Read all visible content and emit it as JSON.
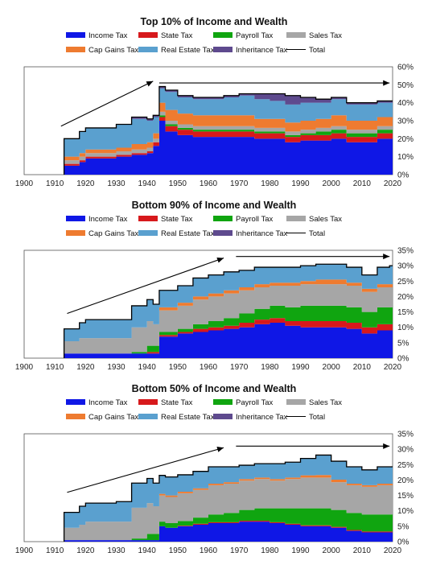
{
  "chart_data": [
    {
      "type": "area",
      "title": "Top 10% of Income and Wealth",
      "x_ticks": [
        1900,
        1910,
        1920,
        1930,
        1940,
        1950,
        1960,
        1970,
        1980,
        1990,
        2000,
        2010,
        2020
      ],
      "y_ticks": [
        "0%",
        "10%",
        "20%",
        "30%",
        "40%",
        "50%",
        "60%"
      ],
      "ylim": [
        0,
        60
      ],
      "xlim": [
        1900,
        2020
      ],
      "stacked": true,
      "legend_position": "top",
      "x": [
        1913,
        1918,
        1920,
        1925,
        1930,
        1935,
        1940,
        1942,
        1944,
        1946,
        1950,
        1955,
        1960,
        1965,
        1970,
        1975,
        1980,
        1985,
        1990,
        1995,
        2000,
        2005,
        2010,
        2015,
        2019
      ],
      "series": [
        {
          "name": "Income Tax",
          "color": "#0f17e6",
          "values": [
            5,
            7,
            9,
            9,
            10,
            11,
            12,
            16,
            30,
            24,
            22,
            21,
            21,
            21,
            21,
            20,
            20,
            18,
            19,
            19,
            20,
            18,
            18,
            20,
            20
          ]
        },
        {
          "name": "State Tax",
          "color": "#d7191c",
          "values": [
            1,
            1,
            1,
            1,
            1,
            1,
            1,
            2,
            2,
            3,
            3,
            3,
            3,
            3,
            3,
            3,
            3,
            3,
            3,
            3,
            3,
            3,
            3,
            3,
            3
          ]
        },
        {
          "name": "Payroll Tax",
          "color": "#10a510",
          "values": [
            0,
            0,
            0,
            0,
            0,
            0,
            0,
            0,
            1,
            1,
            1,
            1,
            1,
            1,
            1,
            1,
            1,
            1,
            1,
            2,
            2,
            2,
            2,
            2,
            2
          ]
        },
        {
          "name": "Sales Tax",
          "color": "#a6a6a6",
          "values": [
            2,
            2,
            2,
            2,
            2,
            2,
            2,
            2,
            2,
            2,
            2,
            2,
            2,
            2,
            2,
            2,
            2,
            2,
            2,
            2,
            2,
            2,
            2,
            2,
            2
          ]
        },
        {
          "name": "Cap Gains Tax",
          "color": "#ee7b30",
          "values": [
            2,
            2,
            2,
            2,
            2,
            3,
            3,
            3,
            5,
            6,
            6,
            6,
            6,
            6,
            6,
            5,
            5,
            5,
            5,
            5,
            6,
            5,
            5,
            5,
            5
          ]
        },
        {
          "name": "Real Estate Tax",
          "color": "#5aa0cf",
          "values": [
            10,
            12,
            12,
            12,
            13,
            14,
            12,
            9,
            8,
            10,
            9,
            9,
            9,
            10,
            11,
            11,
            10,
            10,
            10,
            9,
            9,
            9,
            9,
            8,
            8
          ]
        },
        {
          "name": "Inheritance Tax",
          "color": "#5e4a8e",
          "values": [
            0,
            0,
            0,
            0,
            0,
            1,
            1,
            1,
            1,
            1,
            1,
            1,
            1,
            1,
            1,
            3,
            4,
            5,
            3,
            2,
            1,
            1,
            1,
            1,
            1
          ]
        }
      ],
      "total_label": "Total",
      "arrows": [
        {
          "from": [
            1912,
            27
          ],
          "to": [
            1942,
            52
          ]
        },
        {
          "from": [
            1944,
            51
          ],
          "to": [
            2019,
            51
          ]
        }
      ]
    },
    {
      "type": "area",
      "title": "Bottom 90% of Income and Wealth",
      "x_ticks": [
        1900,
        1910,
        1920,
        1930,
        1940,
        1950,
        1960,
        1970,
        1980,
        1990,
        2000,
        2010,
        2020
      ],
      "y_ticks": [
        "0%",
        "5%",
        "10%",
        "15%",
        "20%",
        "25%",
        "30%",
        "35%"
      ],
      "ylim": [
        0,
        35
      ],
      "xlim": [
        1900,
        2020
      ],
      "stacked": true,
      "legend_position": "top",
      "x": [
        1913,
        1918,
        1920,
        1925,
        1930,
        1935,
        1940,
        1942,
        1944,
        1946,
        1950,
        1955,
        1960,
        1965,
        1970,
        1975,
        1980,
        1985,
        1990,
        1995,
        2000,
        2005,
        2010,
        2015,
        2019
      ],
      "series": [
        {
          "name": "Income Tax",
          "color": "#0f17e6",
          "values": [
            1.5,
            1.5,
            1.5,
            1.5,
            1.5,
            1.5,
            1.5,
            1.5,
            7,
            7,
            8,
            8.5,
            9,
            9.5,
            10,
            11,
            11.5,
            10.5,
            10,
            10,
            10,
            9.5,
            8,
            9,
            9
          ]
        },
        {
          "name": "State Tax",
          "color": "#d7191c",
          "values": [
            0,
            0,
            0,
            0,
            0,
            0,
            0.5,
            0.5,
            0.5,
            0.5,
            0.5,
            1,
            1,
            1,
            1.5,
            1.5,
            1.5,
            1.5,
            2,
            2,
            2,
            2,
            2,
            2,
            2
          ]
        },
        {
          "name": "Payroll Tax",
          "color": "#10a510",
          "values": [
            0,
            0,
            0,
            0,
            0,
            0.5,
            2,
            2,
            1,
            1,
            1,
            1.5,
            2,
            2.5,
            3,
            3.5,
            4,
            4.5,
            5,
            5,
            5,
            5,
            5,
            5.5,
            5.5
          ]
        },
        {
          "name": "Sales Tax",
          "color": "#a6a6a6",
          "values": [
            4,
            5,
            5,
            5,
            5,
            8,
            8,
            7,
            7,
            7,
            7.5,
            8,
            8,
            8,
            7.5,
            7,
            6.5,
            7,
            7,
            7,
            7,
            7,
            6.5,
            6.5,
            6.5
          ]
        },
        {
          "name": "Cap Gains Tax",
          "color": "#ee7b30",
          "values": [
            0,
            0,
            0,
            0,
            0,
            0,
            0,
            0,
            1,
            1,
            1,
            1,
            1,
            1,
            1,
            1,
            1,
            1,
            1,
            1.5,
            1.5,
            1,
            1,
            1,
            1
          ]
        },
        {
          "name": "Real Estate Tax",
          "color": "#5aa0cf",
          "values": [
            4,
            5,
            6,
            6,
            6,
            7,
            7,
            6.5,
            5.5,
            5.5,
            5.5,
            6,
            6,
            6,
            5.5,
            5.5,
            5,
            5,
            5,
            5,
            5,
            5,
            4.5,
            5.5,
            6
          ]
        },
        {
          "name": "Inheritance Tax",
          "color": "#5e4a8e",
          "values": [
            0,
            0,
            0,
            0,
            0,
            0,
            0,
            0,
            0,
            0,
            0,
            0,
            0,
            0,
            0,
            0,
            0,
            0,
            0,
            0,
            0,
            0,
            0,
            0,
            0
          ]
        }
      ],
      "total_label": "Total",
      "arrows": [
        {
          "from": [
            1914,
            14.5
          ],
          "to": [
            1965,
            32.5
          ]
        },
        {
          "from": [
            1969,
            33
          ],
          "to": [
            2019,
            33
          ]
        }
      ]
    },
    {
      "type": "area",
      "title": "Bottom 50% of Income and Wealth",
      "x_ticks": [
        1900,
        1910,
        1920,
        1930,
        1940,
        1950,
        1960,
        1970,
        1980,
        1990,
        2000,
        2010,
        2020
      ],
      "y_ticks": [
        "0%",
        "5%",
        "10%",
        "15%",
        "20%",
        "25%",
        "30%",
        "35%"
      ],
      "ylim": [
        0,
        35
      ],
      "xlim": [
        1900,
        2020
      ],
      "stacked": true,
      "legend_position": "top",
      "x": [
        1913,
        1918,
        1920,
        1925,
        1930,
        1935,
        1940,
        1942,
        1944,
        1946,
        1950,
        1955,
        1960,
        1965,
        1970,
        1975,
        1980,
        1985,
        1990,
        1995,
        2000,
        2005,
        2010,
        2015,
        2019
      ],
      "series": [
        {
          "name": "Income Tax",
          "color": "#0f17e6",
          "values": [
            0.5,
            0.5,
            0.5,
            0.5,
            0.5,
            0.5,
            0.5,
            0.5,
            5,
            4.5,
            5,
            5.5,
            6,
            6,
            6.5,
            6.5,
            6,
            5.5,
            5,
            5,
            4.5,
            3.5,
            3,
            3,
            3
          ]
        },
        {
          "name": "State Tax",
          "color": "#d7191c",
          "values": [
            0,
            0,
            0,
            0,
            0,
            0,
            0,
            0,
            0,
            0,
            0.2,
            0.3,
            0.3,
            0.3,
            0.3,
            0.3,
            0.3,
            0.3,
            0.3,
            0.3,
            0.3,
            0.3,
            0.3,
            0.3,
            0.3
          ]
        },
        {
          "name": "Payroll Tax",
          "color": "#10a510",
          "values": [
            0,
            0,
            0,
            0,
            0,
            0.5,
            2,
            2,
            1.5,
            1.5,
            1.5,
            2,
            2.5,
            3,
            3.5,
            4,
            4.5,
            5,
            5.5,
            5.5,
            5.5,
            5.5,
            5.5,
            5.5,
            5.5
          ]
        },
        {
          "name": "Sales Tax",
          "color": "#a6a6a6",
          "values": [
            4,
            5,
            6,
            6,
            6,
            10,
            10,
            9,
            8.5,
            8.5,
            9,
            9,
            9.5,
            9.5,
            9.5,
            9.5,
            9,
            9.5,
            10,
            10,
            9,
            9,
            9,
            9.5,
            9.5
          ]
        },
        {
          "name": "Cap Gains Tax",
          "color": "#ee7b30",
          "values": [
            0,
            0,
            0,
            0,
            0,
            0,
            0,
            0,
            0.5,
            0.5,
            0.5,
            0.5,
            0.5,
            0.5,
            0.5,
            0.5,
            0.5,
            0.5,
            0.7,
            0.8,
            0.8,
            0.5,
            0.5,
            0.5,
            0.5
          ]
        },
        {
          "name": "Real Estate Tax",
          "color": "#5aa0cf",
          "values": [
            5,
            6,
            6,
            6,
            6.5,
            8,
            8,
            7.5,
            6,
            6,
            5.5,
            5.5,
            5.5,
            5,
            4.5,
            4.5,
            5,
            5,
            5.5,
            6.5,
            6,
            5.5,
            5,
            5.5,
            5.5
          ]
        },
        {
          "name": "Inheritance Tax",
          "color": "#5e4a8e",
          "values": [
            0,
            0,
            0,
            0,
            0,
            0,
            0,
            0,
            0,
            0,
            0,
            0,
            0,
            0,
            0,
            0,
            0,
            0,
            0,
            0,
            0,
            0,
            0,
            0,
            0
          ]
        }
      ],
      "total_label": "Total",
      "arrows": [
        {
          "from": [
            1914,
            16
          ],
          "to": [
            1965,
            30.5
          ]
        },
        {
          "from": [
            1969,
            31
          ],
          "to": [
            2019,
            31
          ]
        }
      ]
    }
  ]
}
